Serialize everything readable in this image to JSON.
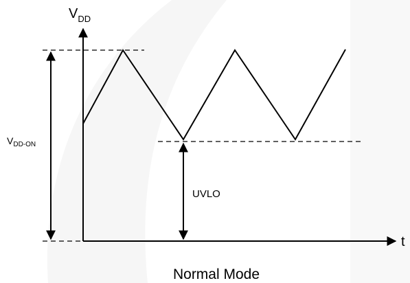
{
  "axes": {
    "y_label": {
      "main": "V",
      "sub": "DD"
    },
    "x_label": "t"
  },
  "annotations": {
    "vdd_on": {
      "main": "V",
      "sub": "DD-ON"
    },
    "uvlo": "UVLO"
  },
  "caption": "Normal Mode"
}
